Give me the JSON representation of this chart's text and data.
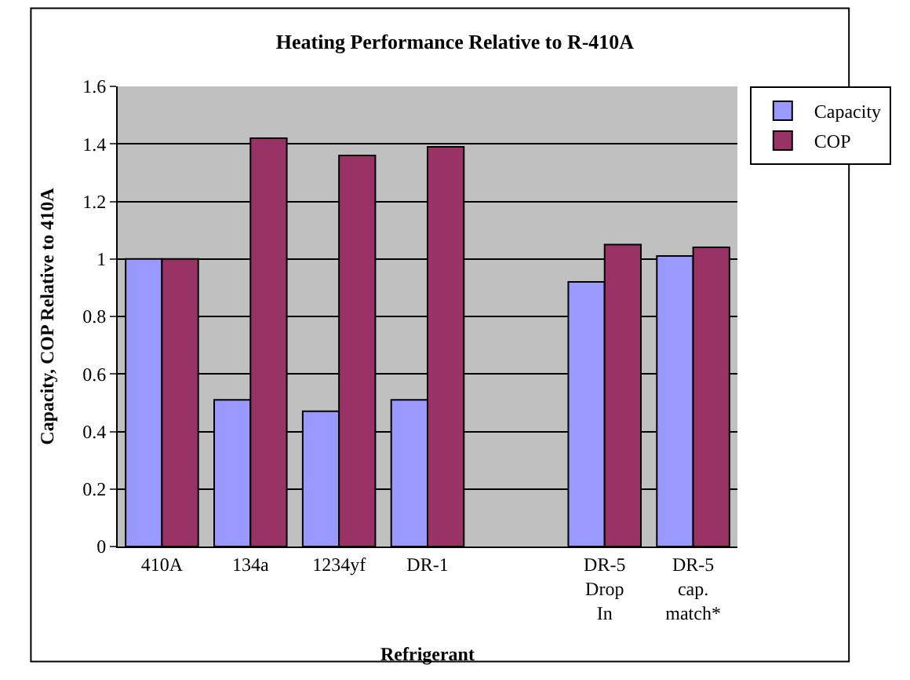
{
  "chart_data": {
    "type": "bar",
    "title": "Heating Performance Relative to R-410A",
    "xlabel": "Refrigerant",
    "ylabel": "Capacity, COP Relative to 410A",
    "categories": [
      "410A",
      "134a",
      "1234yf",
      "DR-1",
      null,
      "DR-5 Drop In",
      "DR-5 cap. match*"
    ],
    "series": [
      {
        "name": "Capacity",
        "color": "#9999ff",
        "values": [
          1.0,
          0.51,
          0.47,
          0.51,
          null,
          0.92,
          1.01
        ]
      },
      {
        "name": "COP",
        "color": "#993366",
        "values": [
          1.0,
          1.42,
          1.36,
          1.39,
          null,
          1.05,
          1.04
        ]
      }
    ],
    "ylim": [
      0,
      1.6
    ],
    "yticks": [
      0,
      0.2,
      0.4,
      0.6,
      0.8,
      1,
      1.2,
      1.4,
      1.6
    ],
    "grid": "y",
    "legend": "top right"
  }
}
